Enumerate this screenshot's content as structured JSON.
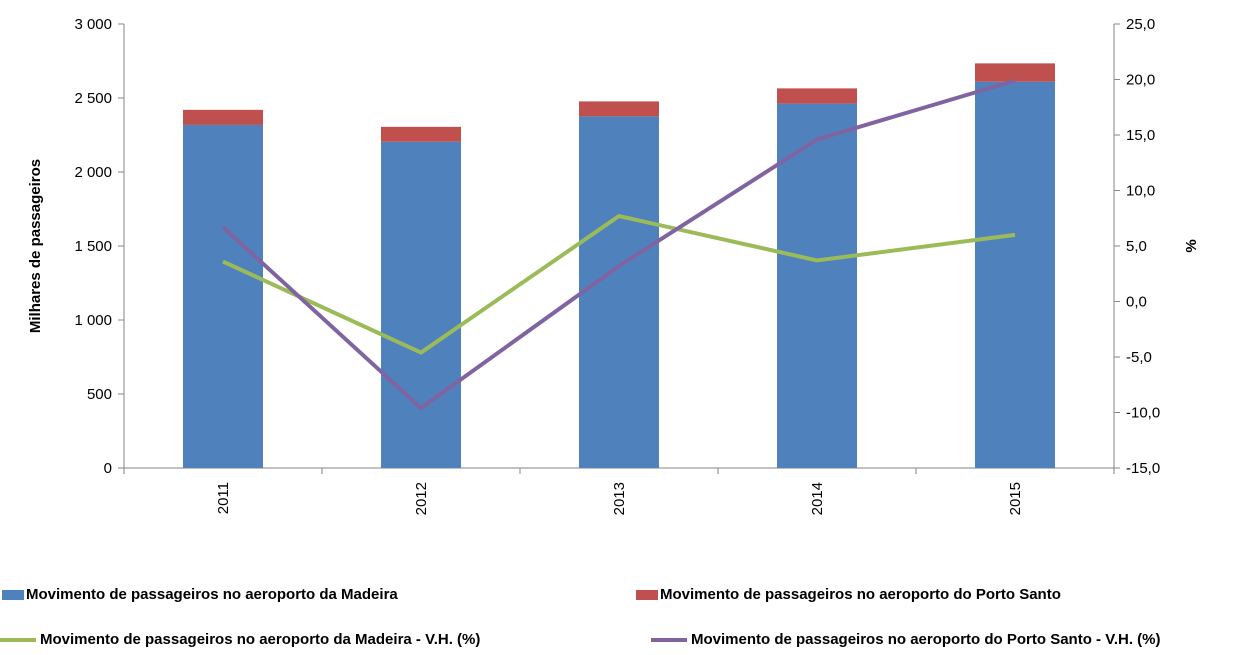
{
  "chart_data": {
    "type": "bar",
    "categories": [
      "2011",
      "2012",
      "2013",
      "2014",
      "2015"
    ],
    "series": [
      {
        "name": "Movimento de passageiros no aeroporto da Madeira",
        "type": "bar",
        "axis": "left",
        "stack": "passageiros",
        "color": "#4F81BD",
        "values": [
          2318,
          2204,
          2376,
          2462,
          2610
        ]
      },
      {
        "name": "Movimento de passageiros no aeroporto do Porto Santo",
        "type": "bar",
        "axis": "left",
        "stack": "passageiros",
        "color": "#C0504D",
        "values": [
          102,
          101,
          101,
          103,
          124
        ]
      },
      {
        "name": "Movimento de passageiros no aeroporto da Madeira - V.H. (%)",
        "type": "line",
        "axis": "right",
        "color": "#9BBB59",
        "values": [
          3.6,
          -4.6,
          7.7,
          3.7,
          6.0
        ]
      },
      {
        "name": "Movimento de passageiros no aeroporto do Porto Santo - V.H. (%)",
        "type": "line",
        "axis": "right",
        "color": "#8064A2",
        "values": [
          6.7,
          -9.6,
          3.2,
          14.6,
          19.9
        ]
      }
    ],
    "y_left": {
      "label": "Milhares de passageiros",
      "range": [
        0,
        3000
      ],
      "ticks": [
        "0",
        "500",
        "1 000",
        "1 500",
        "2 000",
        "2 500",
        "3 000"
      ]
    },
    "y_right": {
      "label": "%",
      "range": [
        -15,
        25
      ],
      "ticks": [
        "-15,0",
        "-10,0",
        "-5,0",
        "0,0",
        "5,0",
        "10,0",
        "15,0",
        "20,0",
        "25,0"
      ]
    },
    "grid": false,
    "legend_position": "bottom"
  }
}
